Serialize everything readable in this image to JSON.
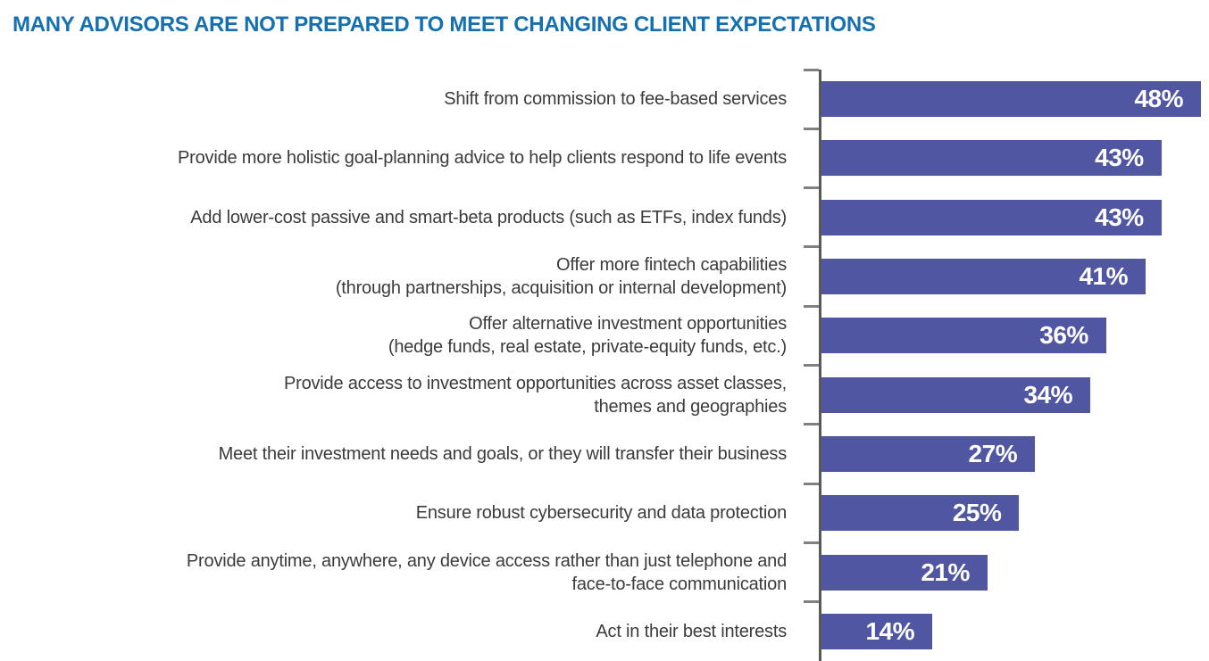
{
  "title": "MANY ADVISORS ARE NOT PREPARED TO MEET CHANGING CLIENT EXPECTATIONS",
  "colors": {
    "title": "#1470b0",
    "bar": "#5156a3",
    "axis": "#59595b",
    "tick": "#818184",
    "label": "#3b3b3d",
    "value": "#ffffff"
  },
  "chart_data": {
    "type": "bar",
    "orientation": "horizontal",
    "title": "MANY ADVISORS ARE NOT PREPARED TO MEET CHANGING CLIENT EXPECTATIONS",
    "categories": [
      "Shift from commission to fee-based services",
      "Provide more holistic goal-planning advice to help clients respond to life events",
      "Add lower-cost passive and smart-beta products (such as ETFs, index funds)",
      "Offer more fintech capabilities (through partnerships, acquisition or internal development)",
      "Offer alternative investment opportunities (hedge funds, real estate, private-equity funds, etc.)",
      "Provide access to investment opportunities across asset classes, themes and geographies",
      "Meet their investment needs and goals, or they will transfer their business",
      "Ensure robust cybersecurity and data protection",
      "Provide anytime, anywhere, any device access rather than just telephone and face-to-face communication",
      "Act in their best interests"
    ],
    "values": [
      48,
      43,
      43,
      41,
      36,
      34,
      27,
      25,
      21,
      14
    ],
    "value_labels": [
      "48%",
      "43%",
      "43%",
      "41%",
      "36%",
      "34%",
      "27%",
      "25%",
      "21%",
      "14%"
    ],
    "xlabel": "",
    "ylabel": "",
    "xlim": [
      0,
      48
    ],
    "unit": "percent",
    "grid": false,
    "legend": false,
    "data_labels_position": "inside-end"
  },
  "rows": [
    {
      "label": "Shift from commission to fee-based services",
      "value": 48,
      "value_label": "48%"
    },
    {
      "label": "Provide more holistic goal-planning advice to help clients respond to life events",
      "value": 43,
      "value_label": "43%"
    },
    {
      "label": "Add lower-cost passive and smart-beta products (such as ETFs, index funds)",
      "value": 43,
      "value_label": "43%"
    },
    {
      "label": "Offer more fintech capabilities\n(through partnerships, acquisition or internal development)",
      "value": 41,
      "value_label": "41%"
    },
    {
      "label": "Offer alternative investment opportunities\n(hedge funds, real estate, private-equity funds, etc.)",
      "value": 36,
      "value_label": "36%"
    },
    {
      "label": "Provide access to investment opportunities across asset classes,\nthemes and geographies",
      "value": 34,
      "value_label": "34%"
    },
    {
      "label": "Meet their investment needs and goals, or they will transfer their business",
      "value": 27,
      "value_label": "27%"
    },
    {
      "label": "Ensure robust cybersecurity and data protection",
      "value": 25,
      "value_label": "25%"
    },
    {
      "label": "Provide anytime, anywhere, any device access rather than just telephone and\nface-to-face communication",
      "value": 21,
      "value_label": "21%"
    },
    {
      "label": "Act in their best interests",
      "value": 14,
      "value_label": "14%"
    }
  ]
}
